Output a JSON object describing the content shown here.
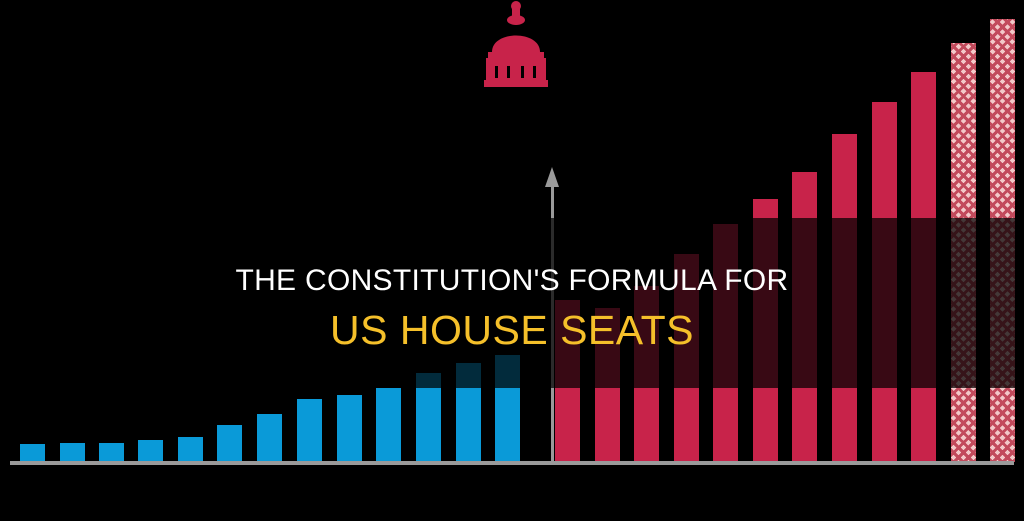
{
  "title": {
    "line1": "THE CONSTITUTION'S FORMULA FOR",
    "line2": "US HOUSE SEATS"
  },
  "icons": {
    "capitol": "capitol-dome-icon",
    "arrow": "arrow-up-icon"
  },
  "colors": {
    "blue": "#0a9ad8",
    "red": "#c8234a",
    "title_white": "#ffffff",
    "title_yellow": "#f5c02a",
    "background": "#000000"
  }
}
